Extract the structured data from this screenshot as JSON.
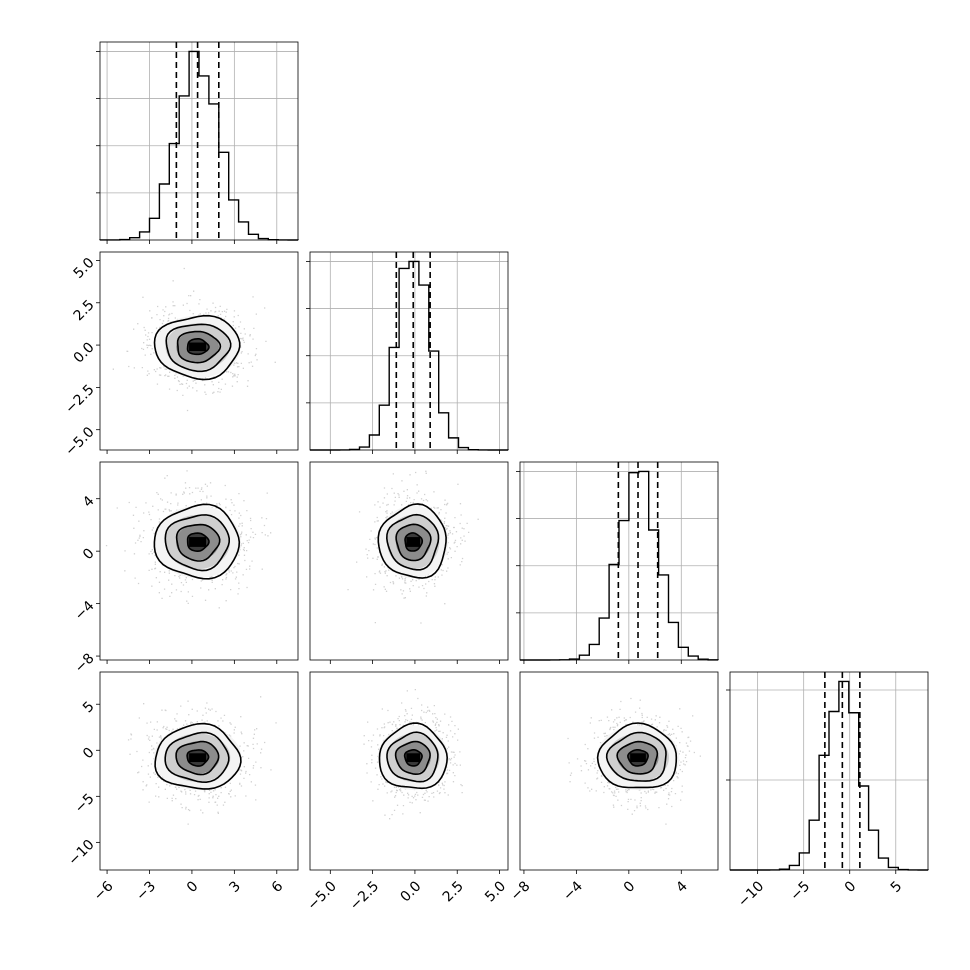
{
  "chart_data": {
    "type": "corner",
    "n_params": 4,
    "grid": true,
    "colors": {
      "points": "#9a9a9a",
      "lines": "#000000",
      "grid": "#b0b0b0"
    },
    "params": [
      {
        "mean": 0.4,
        "sd": 1.5,
        "range": [
          -6.5,
          7.5
        ],
        "ticks": [
          -6,
          -3,
          0,
          3,
          6
        ],
        "tick_labels": [
          "−6",
          "−3",
          "0",
          "3",
          "6"
        ],
        "quantiles": [
          -1.1,
          0.4,
          1.9
        ]
      },
      {
        "mean": -0.1,
        "sd": 1.0,
        "range": [
          -6.2,
          5.5
        ],
        "ticks": [
          -5.0,
          -2.5,
          0.0,
          2.5,
          5.0
        ],
        "tick_labels": [
          "−5.0",
          "−2.5",
          "0.0",
          "2.5",
          "5.0"
        ],
        "quantiles": [
          -1.1,
          -0.1,
          0.9
        ]
      },
      {
        "mean": 0.7,
        "sd": 1.5,
        "range": [
          -8.3,
          6.8
        ],
        "ticks": [
          -8,
          -4,
          0,
          4
        ],
        "tick_labels": [
          "−8",
          "−4",
          "0",
          "4"
        ],
        "quantiles": [
          -0.8,
          0.7,
          2.2
        ]
      },
      {
        "mean": -0.8,
        "sd": 1.9,
        "range": [
          -13.0,
          8.5
        ],
        "ticks": [
          -10,
          -5,
          0,
          5
        ],
        "tick_labels": [
          "−10",
          "−5",
          "0",
          "5"
        ],
        "quantiles": [
          -2.7,
          -0.8,
          1.1
        ]
      }
    ],
    "diagonal_histograms": [
      {
        "bins": 20,
        "density_ticks": 4
      },
      {
        "bins": 20,
        "density_ticks": 4
      },
      {
        "bins": 20,
        "density_ticks": 4
      },
      {
        "bins": 20,
        "density_ticks": 2
      }
    ],
    "contour_levels": [
      0.5,
      1.0,
      1.5,
      2.0
    ]
  }
}
